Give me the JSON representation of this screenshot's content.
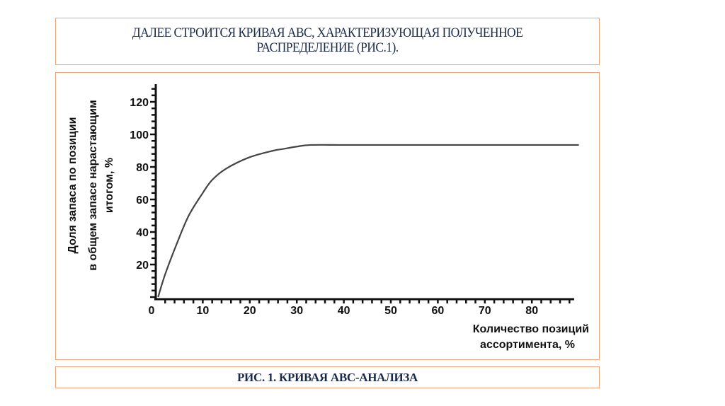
{
  "slide": {
    "title_line1": "ДАЛЕЕ СТРОИТСЯ КРИВАЯ АВС, ХАРАКТЕРИЗУЮЩАЯ ПОЛУЧЕННОЕ",
    "title_line2": "РАСПРЕДЕЛЕНИЕ (РИС.1).",
    "caption": "РИС. 1. КРИВАЯ АВС-АНАЛИЗА",
    "border_color": "#e9a97f",
    "title_color": "#1c2a4a"
  },
  "chart_data": {
    "type": "line",
    "title": "",
    "xlabel": "Количество позиций ассортимента, %",
    "xlabel_line1": "Количество позиций",
    "xlabel_line2": "ассортимента, %",
    "ylabel": "Доля запаса по позиции в общем запасе нарастающим итогом, %",
    "ylabel_line1": "Доля запаса по позиции",
    "ylabel_line2": "в общем запасе нарастающим",
    "ylabel_line3": "итогом, %",
    "xlim": [
      0,
      90
    ],
    "ylim": [
      0,
      130
    ],
    "x_ticks": [
      "0",
      "10",
      "20",
      "30",
      "40",
      "50",
      "60",
      "70",
      "80"
    ],
    "y_ticks": [
      "20",
      "40",
      "60",
      "80",
      "100",
      "120"
    ],
    "grid": false,
    "legend": null,
    "series": [
      {
        "name": "Кривая ABC",
        "x": [
          0.5,
          2,
          4.5,
          7,
          10,
          12,
          15,
          20,
          25,
          27,
          30,
          33,
          40,
          50,
          60,
          70,
          80,
          90
        ],
        "values": [
          0,
          14,
          33,
          50,
          64,
          72,
          79,
          86,
          90,
          91,
          92.5,
          93.5,
          93.5,
          93.5,
          93.5,
          93.5,
          93.5,
          93.5
        ]
      }
    ]
  }
}
